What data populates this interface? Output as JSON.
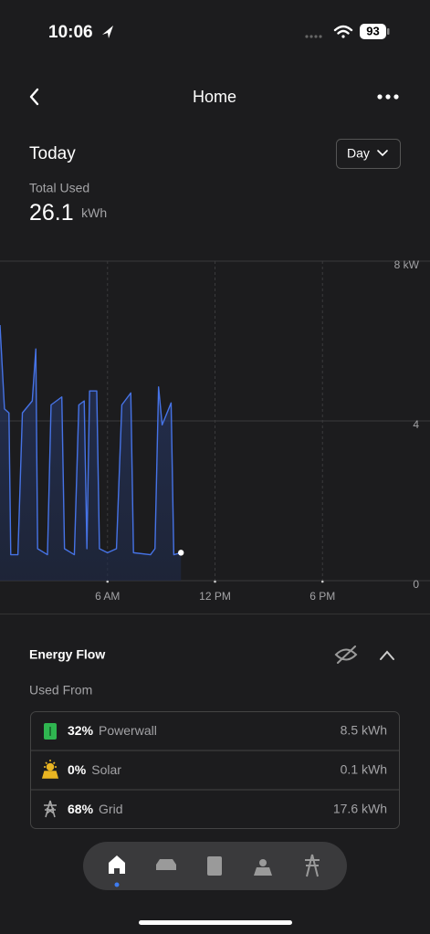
{
  "status_bar": {
    "time": "10:06",
    "battery": "93"
  },
  "header": {
    "title": "Home"
  },
  "summary": {
    "title": "Today",
    "period": "Day",
    "label": "Total Used",
    "value": "26.1",
    "unit": "kWh"
  },
  "chart_data": {
    "type": "line",
    "x": [
      0,
      0.25,
      0.5,
      0.6,
      1.0,
      1.25,
      1.8,
      2.0,
      2.1,
      2.65,
      2.85,
      3.45,
      3.6,
      4.15,
      4.4,
      4.7,
      4.85,
      5.0,
      5.4,
      5.55,
      6.0,
      6.5,
      6.8,
      7.3,
      7.45,
      8.4,
      8.65,
      8.85,
      9.05,
      9.55,
      9.7,
      10.1
    ],
    "series": [
      {
        "color": "#4673e6",
        "values": [
          6.4,
          4.3,
          4.2,
          0.65,
          0.65,
          4.2,
          4.5,
          5.8,
          0.8,
          0.65,
          4.4,
          4.6,
          0.8,
          0.65,
          4.4,
          4.5,
          0.8,
          4.75,
          4.75,
          0.8,
          0.7,
          0.8,
          4.4,
          4.7,
          0.7,
          0.65,
          0.8,
          4.85,
          3.9,
          4.45,
          0.65,
          0.7
        ]
      }
    ],
    "xlim": [
      0,
      24
    ],
    "xticks": [
      {
        "value": 6,
        "label": "6 AM"
      },
      {
        "value": 12,
        "label": "12 PM"
      },
      {
        "value": 18,
        "label": "6 PM"
      }
    ],
    "ylim": [
      0,
      8
    ],
    "yticks": [
      {
        "value": 8,
        "label": "8 kW"
      },
      4,
      0
    ],
    "grid": true
  },
  "energy_flow": {
    "title": "Energy Flow",
    "subtitle": "Used From",
    "rows": [
      {
        "percent": "32%",
        "source": "Powerwall",
        "amount": "8.5 kWh"
      },
      {
        "percent": "0%",
        "source": "Solar",
        "amount": "0.1 kWh"
      },
      {
        "percent": "68%",
        "source": "Grid",
        "amount": "17.6 kWh"
      }
    ]
  }
}
